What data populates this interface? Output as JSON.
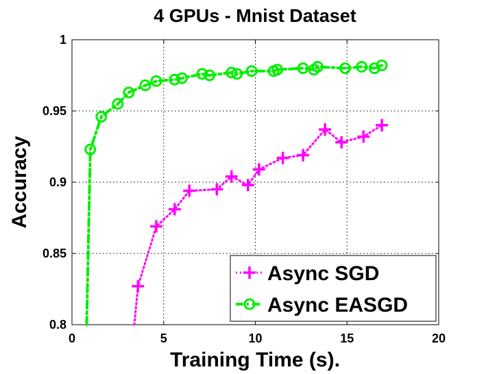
{
  "chart_data": {
    "type": "line",
    "title": "4 GPUs - Mnist Dataset",
    "xlabel": "Training Time (s).",
    "ylabel": "Accuracy",
    "xlim": [
      0,
      20
    ],
    "ylim": [
      0.8,
      1.0
    ],
    "xticks": [
      0,
      5,
      10,
      15,
      20
    ],
    "yticks": [
      0.8,
      0.85,
      0.9,
      0.95,
      1.0
    ],
    "xtick_labels": [
      "0",
      "5",
      "10",
      "15",
      "20"
    ],
    "ytick_labels": [
      "0.8",
      "0.85",
      "0.9",
      "0.95",
      "1"
    ],
    "grid": true,
    "legend_position": "bottom-right",
    "series": [
      {
        "name": "Async SGD",
        "color": "#ff00ff",
        "line_style": "dotted",
        "marker": "plus",
        "lead_in": [
          3.4,
          0.8
        ],
        "x": [
          3.6,
          4.6,
          5.6,
          6.4,
          7.9,
          8.7,
          9.6,
          10.2,
          11.5,
          12.6,
          13.8,
          14.7,
          15.9,
          16.9
        ],
        "y": [
          0.827,
          0.869,
          0.881,
          0.894,
          0.895,
          0.904,
          0.898,
          0.909,
          0.917,
          0.919,
          0.937,
          0.928,
          0.932,
          0.94
        ]
      },
      {
        "name": "Async EASGD",
        "color": "#00ee00",
        "line_style": "dash-dot",
        "marker": "circle",
        "lead_in": [
          0.8,
          0.8
        ],
        "x": [
          1.0,
          1.6,
          2.5,
          3.1,
          4.0,
          4.6,
          5.6,
          6.0,
          7.1,
          7.5,
          8.7,
          9.0,
          9.8,
          11.0,
          11.2,
          12.6,
          13.2,
          13.4,
          14.9,
          15.8,
          16.5,
          16.9
        ],
        "y": [
          0.923,
          0.946,
          0.955,
          0.963,
          0.968,
          0.971,
          0.972,
          0.973,
          0.976,
          0.975,
          0.977,
          0.976,
          0.978,
          0.978,
          0.979,
          0.98,
          0.979,
          0.981,
          0.98,
          0.981,
          0.98,
          0.982
        ]
      }
    ]
  }
}
